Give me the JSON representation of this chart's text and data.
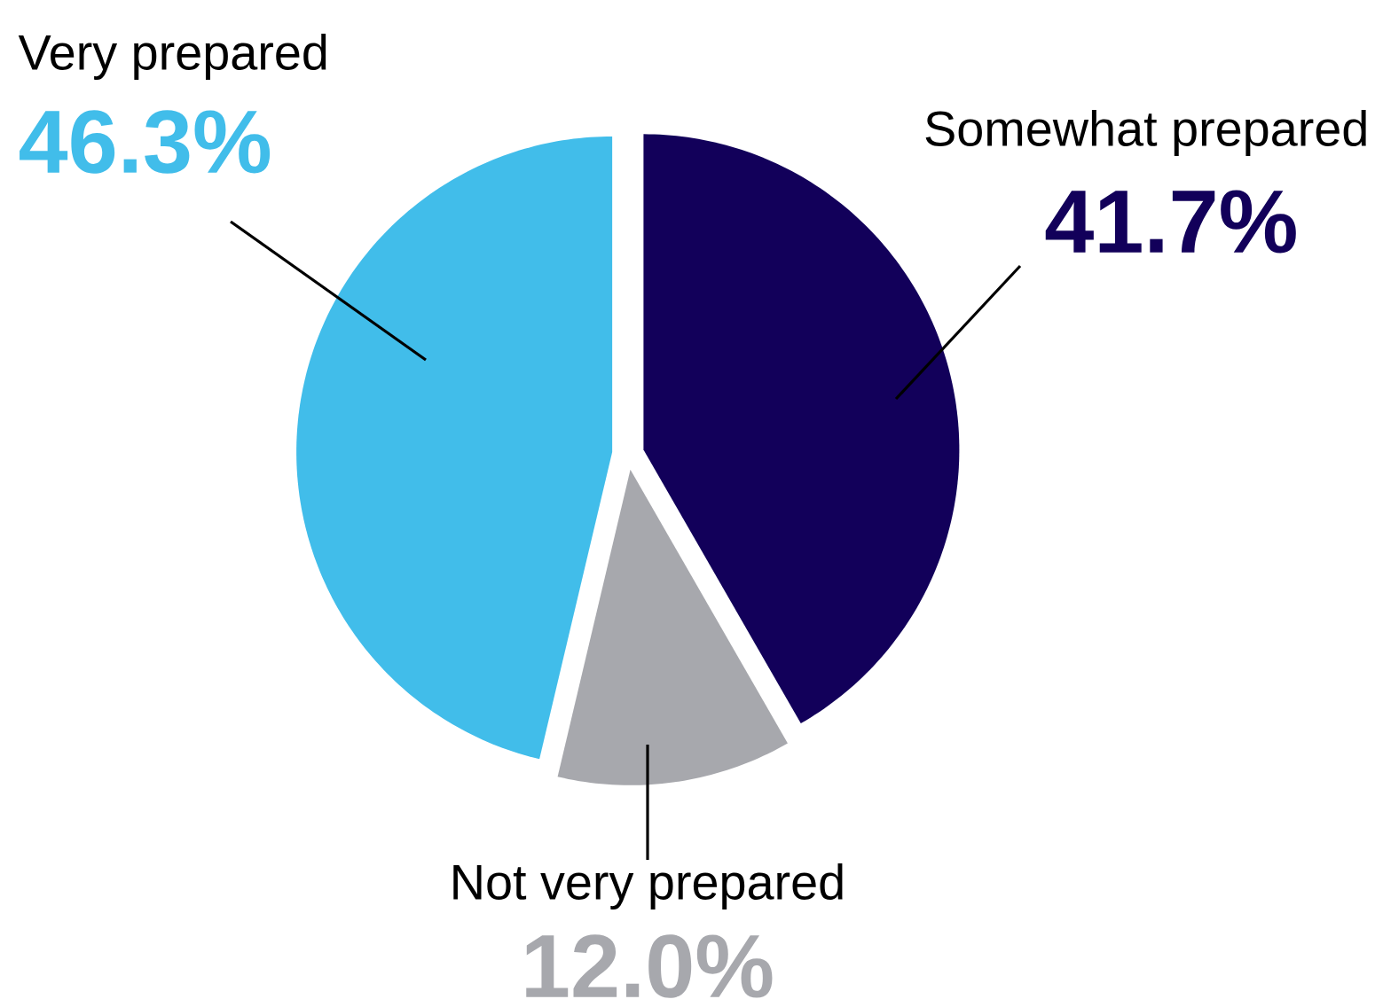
{
  "chart_data": {
    "type": "pie",
    "categories": [
      "Somewhat prepared",
      "Not very prepared",
      "Very prepared"
    ],
    "values": [
      41.7,
      12.0,
      46.3
    ],
    "value_labels": [
      "41.7%",
      "12.0%",
      "46.3%"
    ],
    "colors": [
      "#12005a",
      "#a7a8ad",
      "#41bdea"
    ]
  }
}
